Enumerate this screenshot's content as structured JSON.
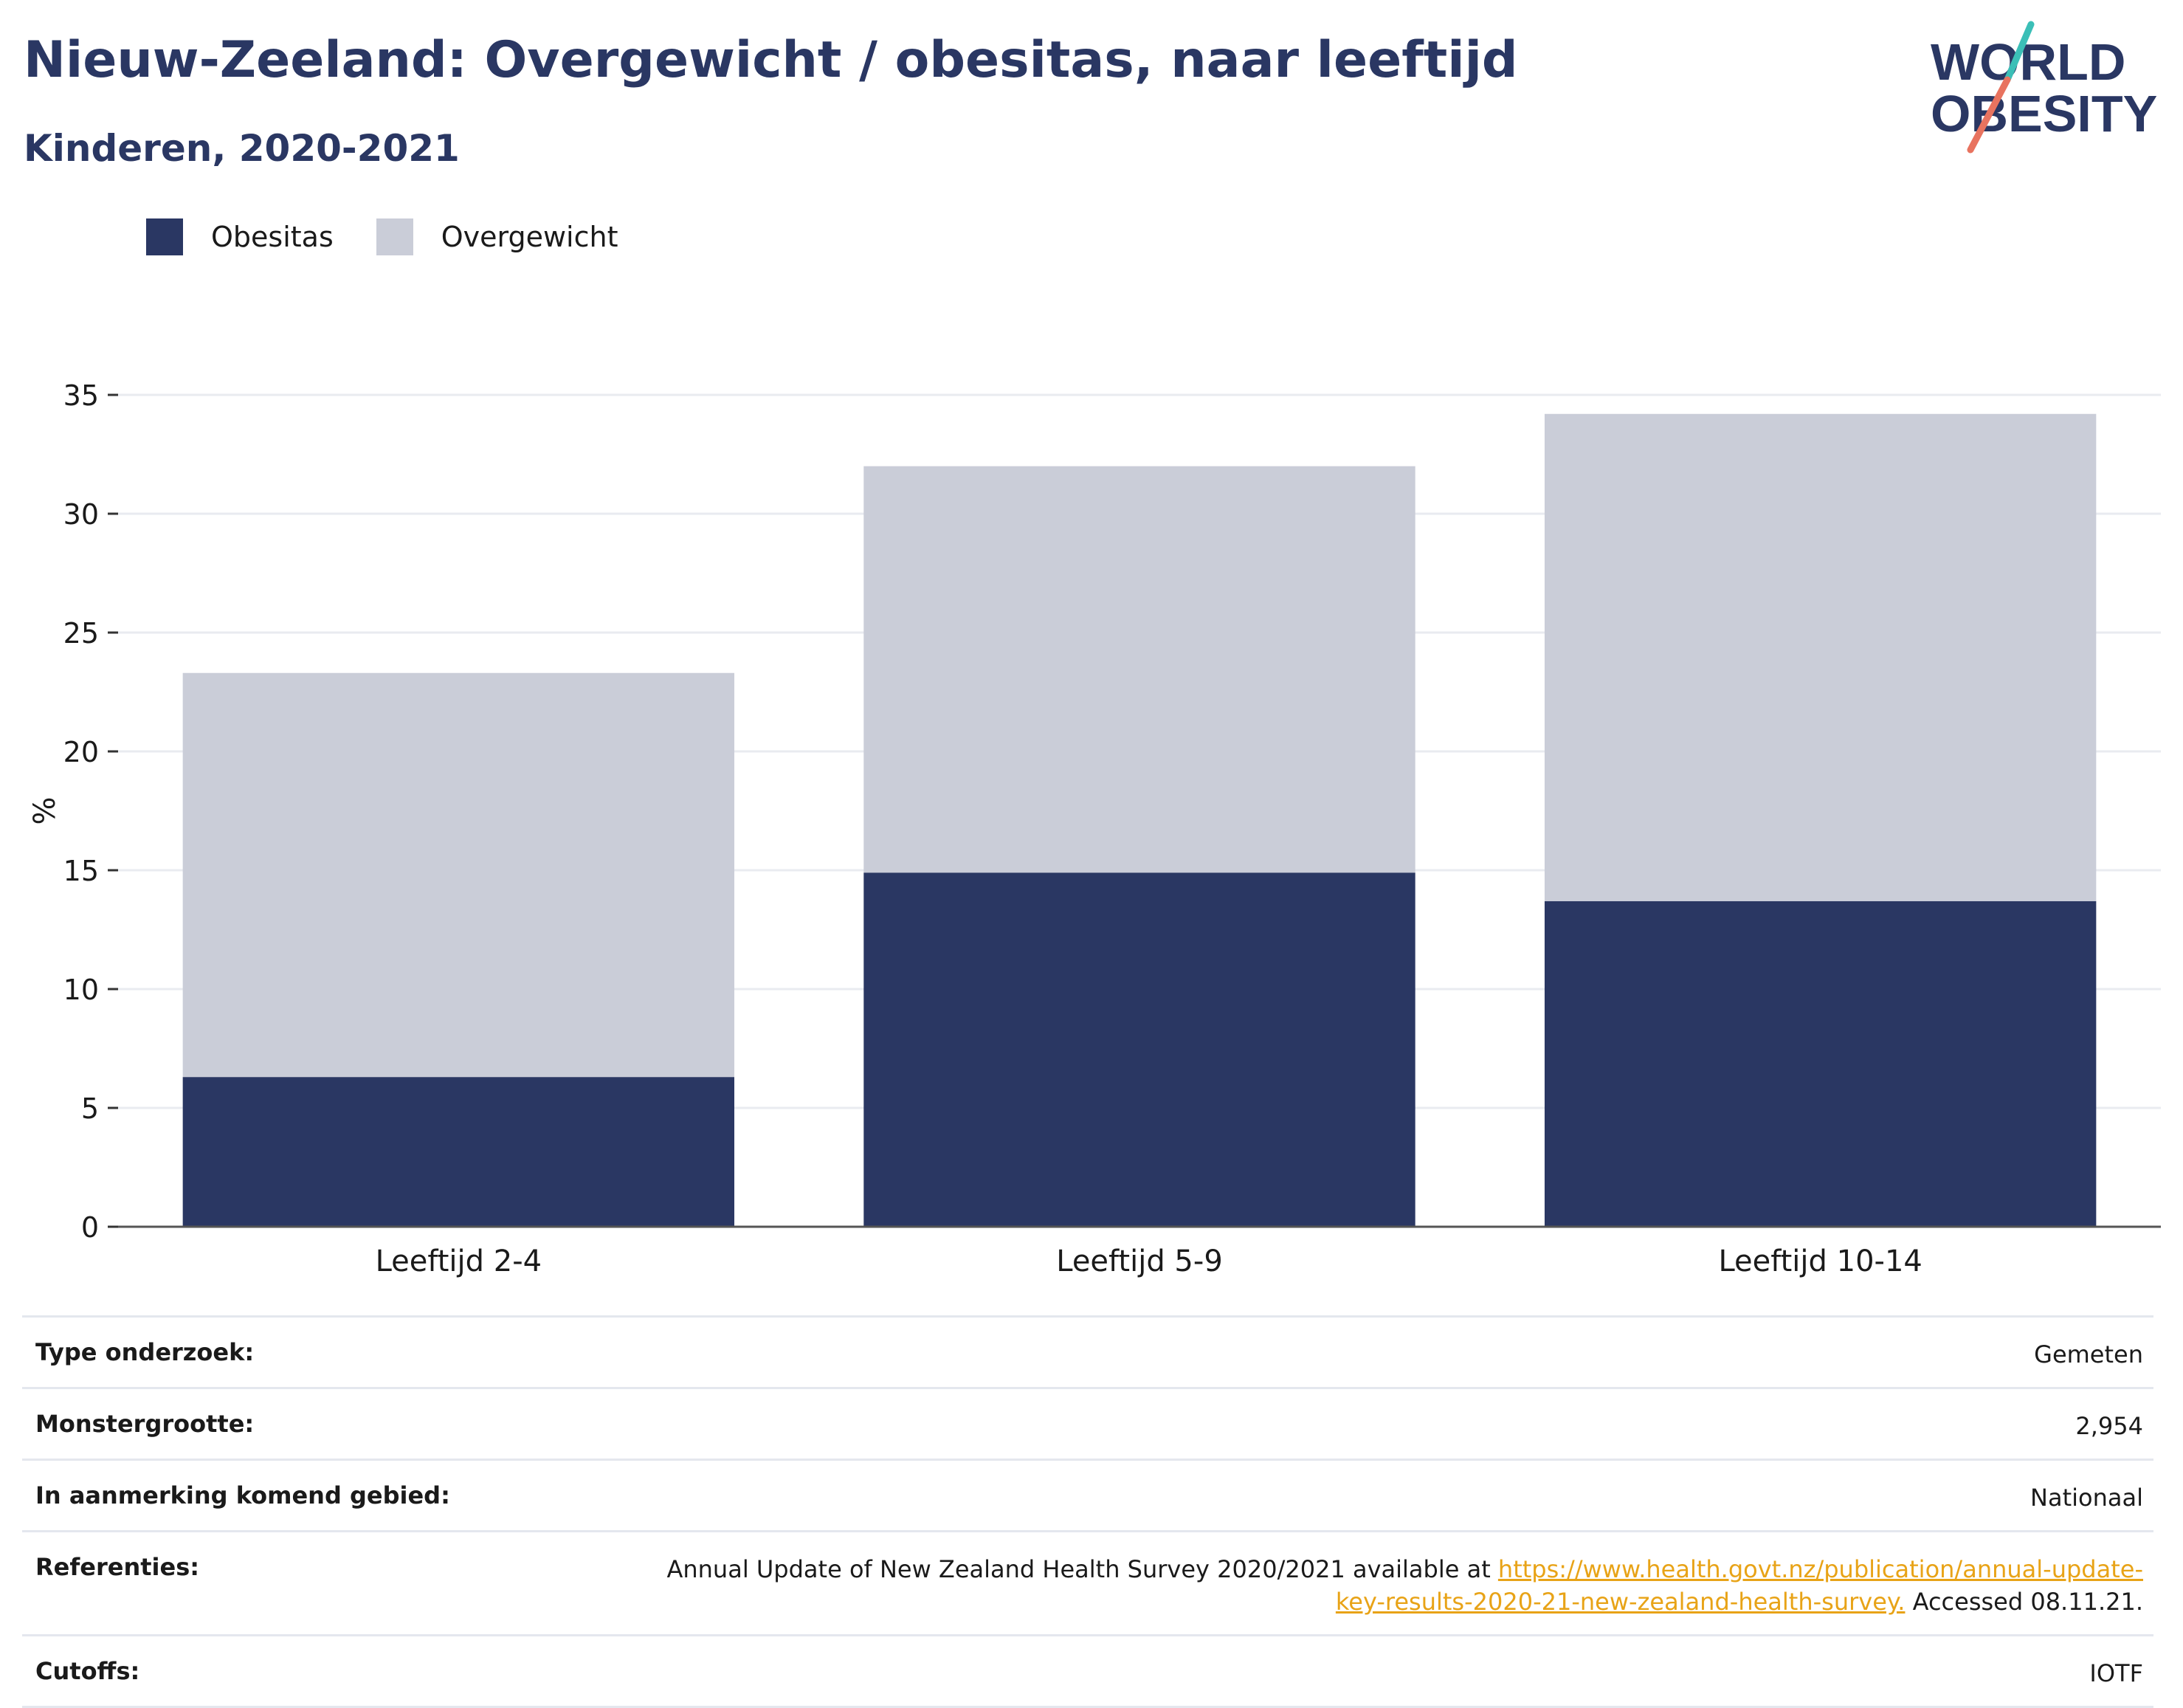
{
  "header": {
    "title": "Nieuw-Zeeland: Overgewicht / obesitas, naar leeftijd",
    "subtitle": "Kinderen, 2020-2021"
  },
  "logo": {
    "line1": "WORLD",
    "line2": "OBESITY"
  },
  "legend": {
    "items": [
      {
        "label": "Obesitas",
        "color": "#2a3763"
      },
      {
        "label": "Overgewicht",
        "color": "#cacdd8"
      }
    ]
  },
  "chart_data": {
    "type": "bar",
    "stacked": true,
    "categories": [
      "Leeftijd 2-4",
      "Leeftijd 5-9",
      "Leeftijd 10-14"
    ],
    "series": [
      {
        "name": "Obesitas",
        "values": [
          6.3,
          14.9,
          13.7
        ],
        "color": "#2a3763"
      },
      {
        "name": "Overgewicht",
        "values": [
          17.0,
          17.1,
          20.5
        ],
        "color": "#cacdd8"
      }
    ],
    "ylabel": "%",
    "ylim": [
      0,
      35
    ],
    "yticks": [
      0,
      5,
      10,
      15,
      20,
      25,
      30,
      35
    ],
    "grid": true
  },
  "info": {
    "survey_type": {
      "label": "Type onderzoek:",
      "value": "Gemeten"
    },
    "sample_size": {
      "label": "Monstergrootte:",
      "value": "2,954"
    },
    "area": {
      "label": "In aanmerking komend gebied:",
      "value": "Nationaal"
    },
    "references": {
      "label": "Referenties:",
      "text_before": "Annual Update of New Zealand Health Survey 2020/2021 available at ",
      "link": "https://www.health.govt.nz/publication/annual-update-key-results-2020-21-new-zealand-health-survey.",
      "text_after": " Accessed 08.11.21."
    },
    "cutoffs": {
      "label": "Cutoffs:",
      "value": "IOTF"
    }
  }
}
